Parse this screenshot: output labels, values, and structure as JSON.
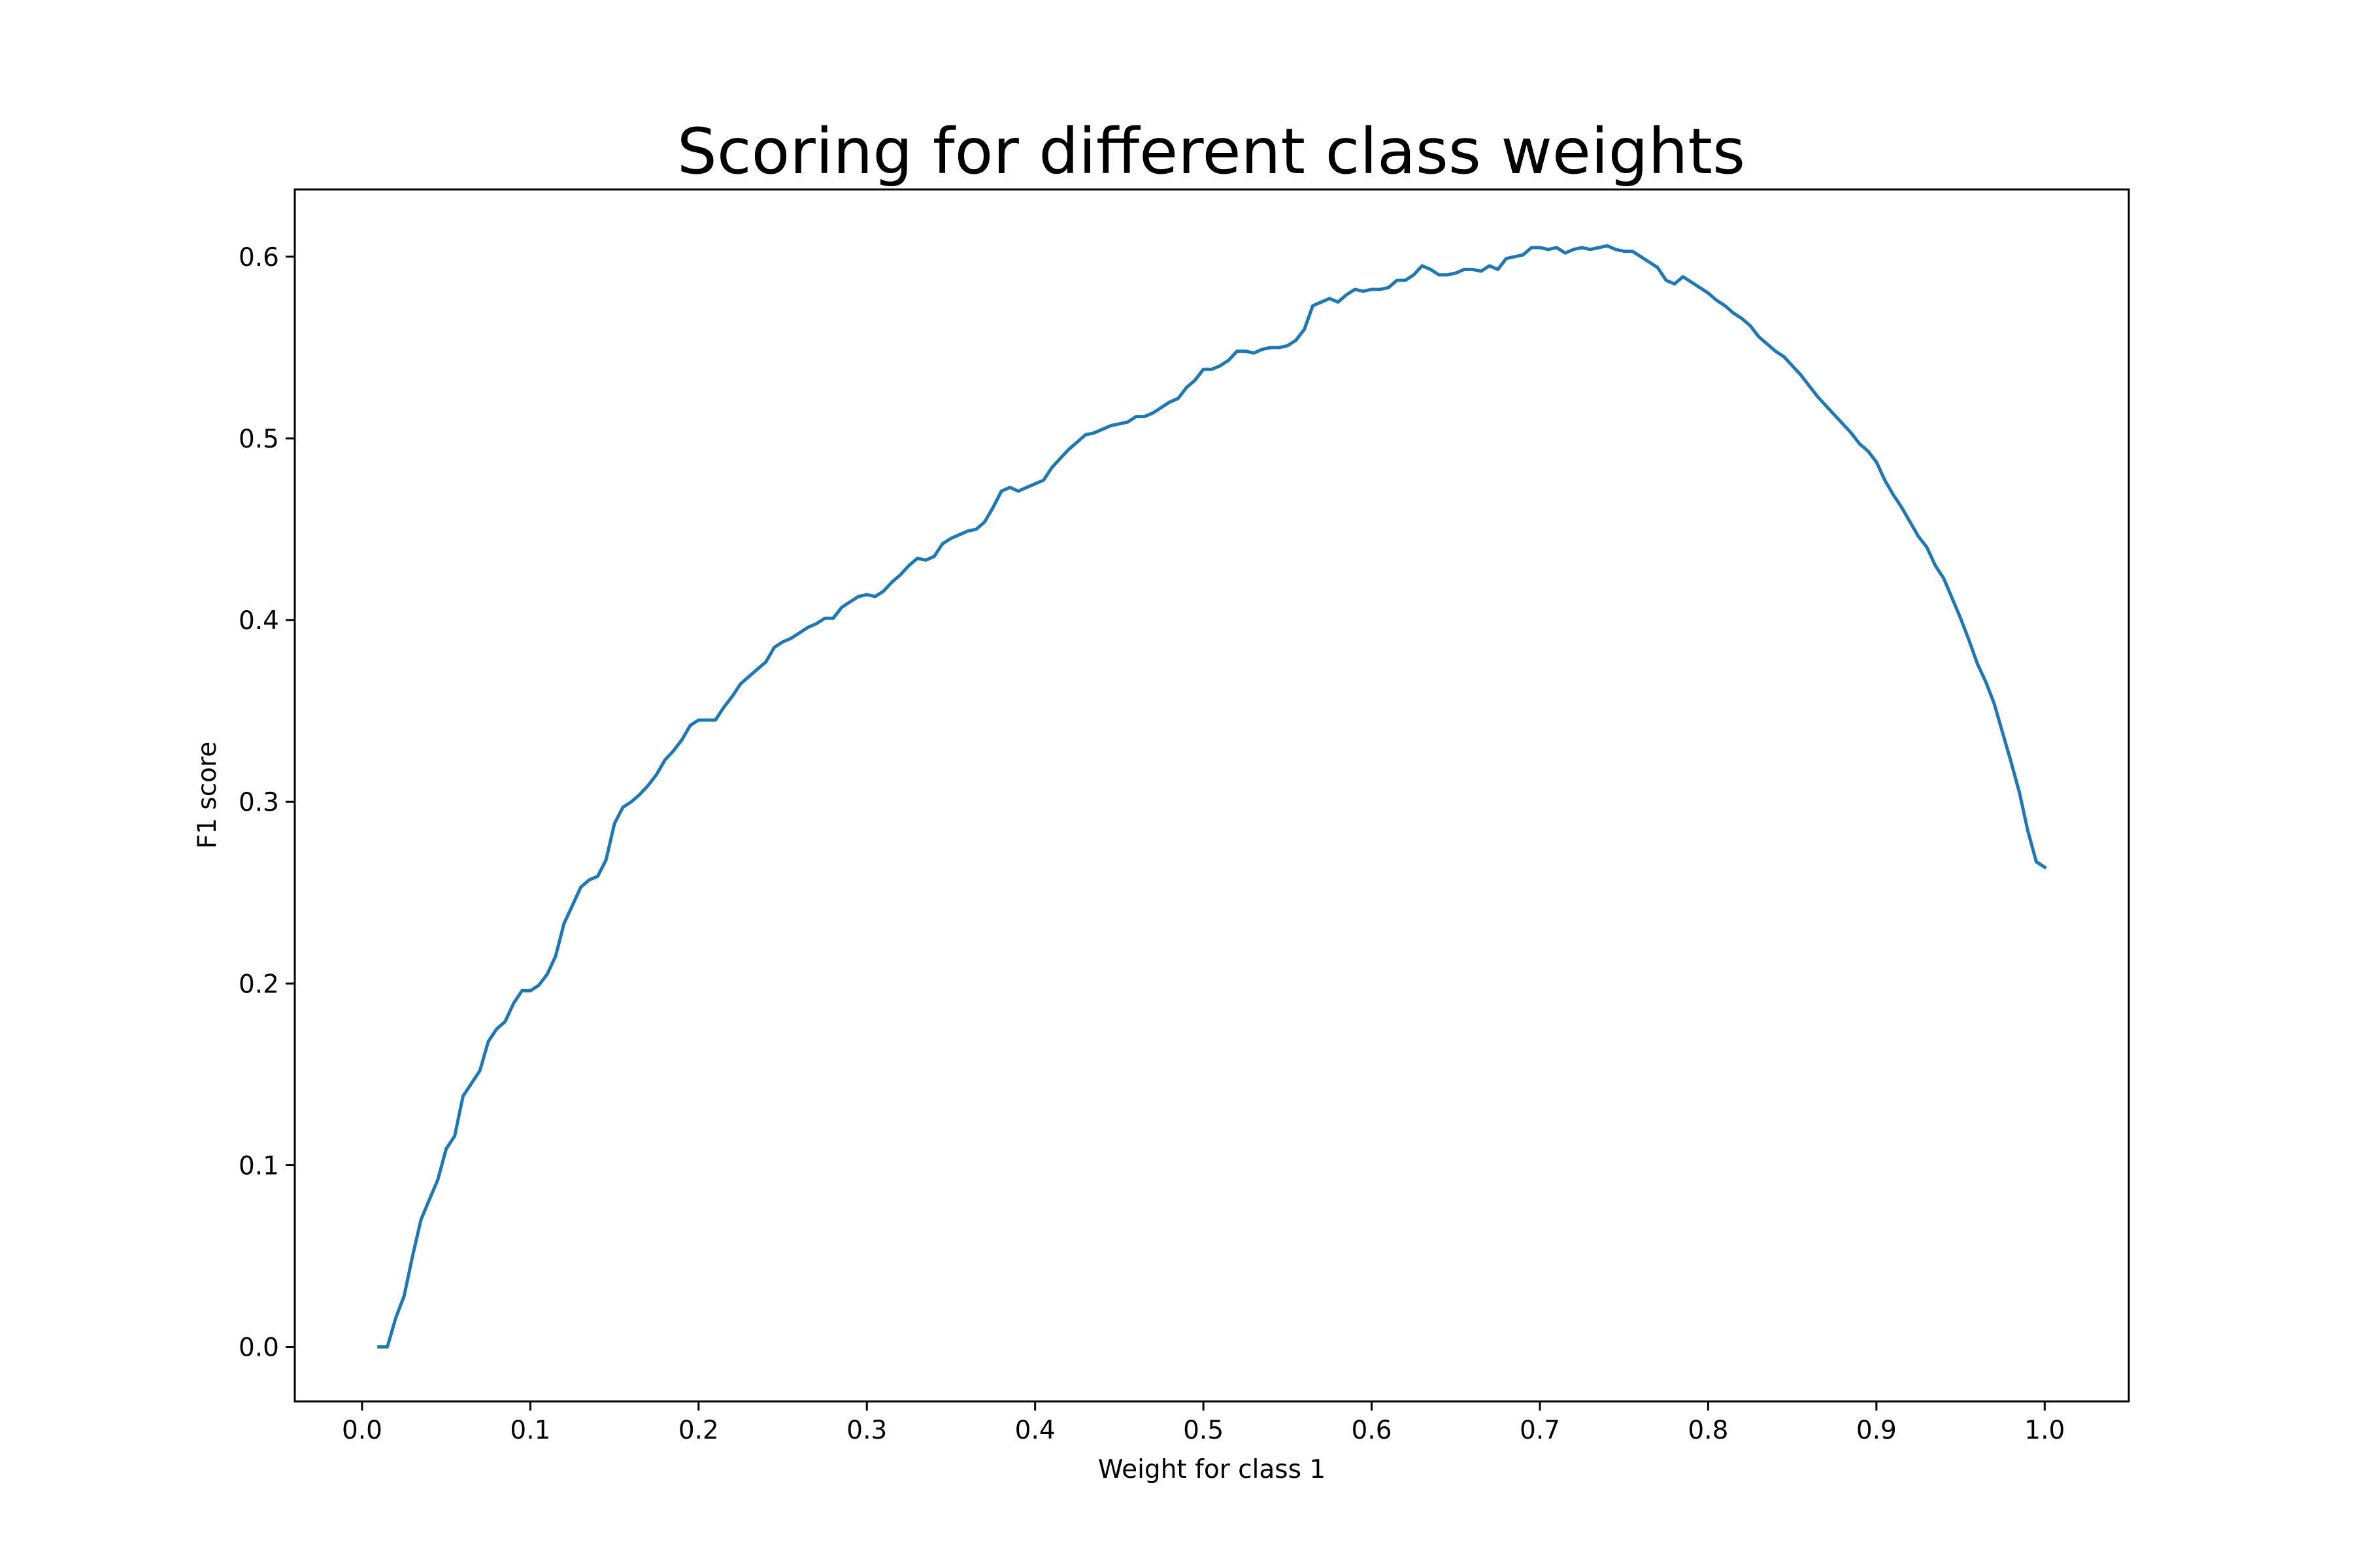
{
  "chart_data": {
    "type": "line",
    "title": "Scoring for different class weights",
    "xlabel": "Weight for class 1",
    "ylabel": "F1 score",
    "xlim": [
      -0.04,
      1.05
    ],
    "ylim": [
      -0.03,
      0.637
    ],
    "xticks": [
      0.0,
      0.1,
      0.2,
      0.3,
      0.4,
      0.5,
      0.6,
      0.7,
      0.8,
      0.9,
      1.0
    ],
    "xtick_labels": [
      "0.0",
      "0.1",
      "0.2",
      "0.3",
      "0.4",
      "0.5",
      "0.6",
      "0.7",
      "0.8",
      "0.9",
      "1.0"
    ],
    "yticks": [
      0.0,
      0.1,
      0.2,
      0.3,
      0.4,
      0.5,
      0.6
    ],
    "ytick_labels": [
      "0.0",
      "0.1",
      "0.2",
      "0.3",
      "0.4",
      "0.5",
      "0.6"
    ],
    "grid": false,
    "legend": "none",
    "series": [
      {
        "color": "#1f77b4",
        "points": [
          [
            0.01,
            0.0
          ],
          [
            0.015,
            0.0
          ],
          [
            0.02,
            0.016
          ],
          [
            0.025,
            0.028
          ],
          [
            0.03,
            0.05
          ],
          [
            0.035,
            0.07
          ],
          [
            0.04,
            0.081
          ],
          [
            0.045,
            0.092
          ],
          [
            0.05,
            0.109
          ],
          [
            0.055,
            0.116
          ],
          [
            0.06,
            0.138
          ],
          [
            0.065,
            0.145
          ],
          [
            0.07,
            0.152
          ],
          [
            0.075,
            0.168
          ],
          [
            0.08,
            0.175
          ],
          [
            0.085,
            0.179
          ],
          [
            0.09,
            0.189
          ],
          [
            0.095,
            0.196
          ],
          [
            0.1,
            0.196
          ],
          [
            0.105,
            0.199
          ],
          [
            0.11,
            0.205
          ],
          [
            0.115,
            0.215
          ],
          [
            0.12,
            0.233
          ],
          [
            0.125,
            0.243
          ],
          [
            0.13,
            0.253
          ],
          [
            0.135,
            0.257
          ],
          [
            0.14,
            0.259
          ],
          [
            0.145,
            0.268
          ],
          [
            0.15,
            0.288
          ],
          [
            0.155,
            0.297
          ],
          [
            0.16,
            0.3
          ],
          [
            0.165,
            0.304
          ],
          [
            0.17,
            0.309
          ],
          [
            0.175,
            0.315
          ],
          [
            0.18,
            0.323
          ],
          [
            0.185,
            0.328
          ],
          [
            0.19,
            0.334
          ],
          [
            0.195,
            0.342
          ],
          [
            0.2,
            0.345
          ],
          [
            0.205,
            0.345
          ],
          [
            0.21,
            0.345
          ],
          [
            0.215,
            0.352
          ],
          [
            0.22,
            0.358
          ],
          [
            0.225,
            0.365
          ],
          [
            0.23,
            0.369
          ],
          [
            0.235,
            0.373
          ],
          [
            0.24,
            0.377
          ],
          [
            0.245,
            0.385
          ],
          [
            0.25,
            0.388
          ],
          [
            0.255,
            0.39
          ],
          [
            0.26,
            0.393
          ],
          [
            0.265,
            0.396
          ],
          [
            0.27,
            0.398
          ],
          [
            0.275,
            0.401
          ],
          [
            0.28,
            0.401
          ],
          [
            0.285,
            0.407
          ],
          [
            0.29,
            0.41
          ],
          [
            0.295,
            0.413
          ],
          [
            0.3,
            0.414
          ],
          [
            0.305,
            0.413
          ],
          [
            0.31,
            0.416
          ],
          [
            0.315,
            0.421
          ],
          [
            0.32,
            0.425
          ],
          [
            0.325,
            0.43
          ],
          [
            0.33,
            0.434
          ],
          [
            0.335,
            0.433
          ],
          [
            0.34,
            0.435
          ],
          [
            0.345,
            0.442
          ],
          [
            0.35,
            0.445
          ],
          [
            0.355,
            0.447
          ],
          [
            0.36,
            0.449
          ],
          [
            0.365,
            0.45
          ],
          [
            0.37,
            0.454
          ],
          [
            0.375,
            0.462
          ],
          [
            0.38,
            0.471
          ],
          [
            0.385,
            0.473
          ],
          [
            0.39,
            0.471
          ],
          [
            0.395,
            0.473
          ],
          [
            0.4,
            0.475
          ],
          [
            0.405,
            0.477
          ],
          [
            0.41,
            0.484
          ],
          [
            0.415,
            0.489
          ],
          [
            0.42,
            0.494
          ],
          [
            0.425,
            0.498
          ],
          [
            0.43,
            0.502
          ],
          [
            0.435,
            0.503
          ],
          [
            0.44,
            0.505
          ],
          [
            0.445,
            0.507
          ],
          [
            0.45,
            0.508
          ],
          [
            0.455,
            0.509
          ],
          [
            0.46,
            0.512
          ],
          [
            0.465,
            0.512
          ],
          [
            0.47,
            0.514
          ],
          [
            0.475,
            0.517
          ],
          [
            0.48,
            0.52
          ],
          [
            0.485,
            0.522
          ],
          [
            0.49,
            0.528
          ],
          [
            0.495,
            0.532
          ],
          [
            0.5,
            0.538
          ],
          [
            0.505,
            0.538
          ],
          [
            0.51,
            0.54
          ],
          [
            0.515,
            0.543
          ],
          [
            0.52,
            0.548
          ],
          [
            0.525,
            0.548
          ],
          [
            0.53,
            0.547
          ],
          [
            0.535,
            0.549
          ],
          [
            0.54,
            0.55
          ],
          [
            0.545,
            0.55
          ],
          [
            0.55,
            0.551
          ],
          [
            0.555,
            0.554
          ],
          [
            0.56,
            0.56
          ],
          [
            0.565,
            0.573
          ],
          [
            0.57,
            0.575
          ],
          [
            0.575,
            0.577
          ],
          [
            0.58,
            0.575
          ],
          [
            0.585,
            0.579
          ],
          [
            0.59,
            0.582
          ],
          [
            0.595,
            0.581
          ],
          [
            0.6,
            0.582
          ],
          [
            0.605,
            0.582
          ],
          [
            0.61,
            0.583
          ],
          [
            0.615,
            0.587
          ],
          [
            0.62,
            0.587
          ],
          [
            0.625,
            0.59
          ],
          [
            0.63,
            0.595
          ],
          [
            0.635,
            0.593
          ],
          [
            0.64,
            0.59
          ],
          [
            0.645,
            0.59
          ],
          [
            0.65,
            0.591
          ],
          [
            0.655,
            0.593
          ],
          [
            0.66,
            0.593
          ],
          [
            0.665,
            0.592
          ],
          [
            0.67,
            0.595
          ],
          [
            0.675,
            0.593
          ],
          [
            0.68,
            0.599
          ],
          [
            0.685,
            0.6
          ],
          [
            0.69,
            0.601
          ],
          [
            0.695,
            0.605
          ],
          [
            0.7,
            0.605
          ],
          [
            0.705,
            0.604
          ],
          [
            0.71,
            0.605
          ],
          [
            0.715,
            0.602
          ],
          [
            0.72,
            0.604
          ],
          [
            0.725,
            0.605
          ],
          [
            0.73,
            0.604
          ],
          [
            0.735,
            0.605
          ],
          [
            0.74,
            0.606
          ],
          [
            0.745,
            0.604
          ],
          [
            0.75,
            0.603
          ],
          [
            0.755,
            0.603
          ],
          [
            0.76,
            0.6
          ],
          [
            0.765,
            0.597
          ],
          [
            0.77,
            0.594
          ],
          [
            0.775,
            0.587
          ],
          [
            0.78,
            0.585
          ],
          [
            0.785,
            0.589
          ],
          [
            0.79,
            0.586
          ],
          [
            0.795,
            0.583
          ],
          [
            0.8,
            0.58
          ],
          [
            0.805,
            0.576
          ],
          [
            0.81,
            0.573
          ],
          [
            0.815,
            0.569
          ],
          [
            0.82,
            0.566
          ],
          [
            0.825,
            0.562
          ],
          [
            0.83,
            0.556
          ],
          [
            0.835,
            0.552
          ],
          [
            0.84,
            0.548
          ],
          [
            0.845,
            0.545
          ],
          [
            0.85,
            0.54
          ],
          [
            0.855,
            0.535
          ],
          [
            0.86,
            0.529
          ],
          [
            0.865,
            0.523
          ],
          [
            0.87,
            0.518
          ],
          [
            0.875,
            0.513
          ],
          [
            0.88,
            0.508
          ],
          [
            0.885,
            0.503
          ],
          [
            0.89,
            0.497
          ],
          [
            0.895,
            0.493
          ],
          [
            0.9,
            0.487
          ],
          [
            0.905,
            0.477
          ],
          [
            0.91,
            0.469
          ],
          [
            0.915,
            0.462
          ],
          [
            0.92,
            0.454
          ],
          [
            0.925,
            0.446
          ],
          [
            0.93,
            0.44
          ],
          [
            0.935,
            0.43
          ],
          [
            0.94,
            0.423
          ],
          [
            0.945,
            0.412
          ],
          [
            0.95,
            0.401
          ],
          [
            0.955,
            0.389
          ],
          [
            0.96,
            0.376
          ],
          [
            0.965,
            0.366
          ],
          [
            0.97,
            0.354
          ],
          [
            0.975,
            0.338
          ],
          [
            0.98,
            0.322
          ],
          [
            0.985,
            0.305
          ],
          [
            0.99,
            0.284
          ],
          [
            0.995,
            0.267
          ],
          [
            1.0,
            0.264
          ]
        ]
      }
    ]
  }
}
